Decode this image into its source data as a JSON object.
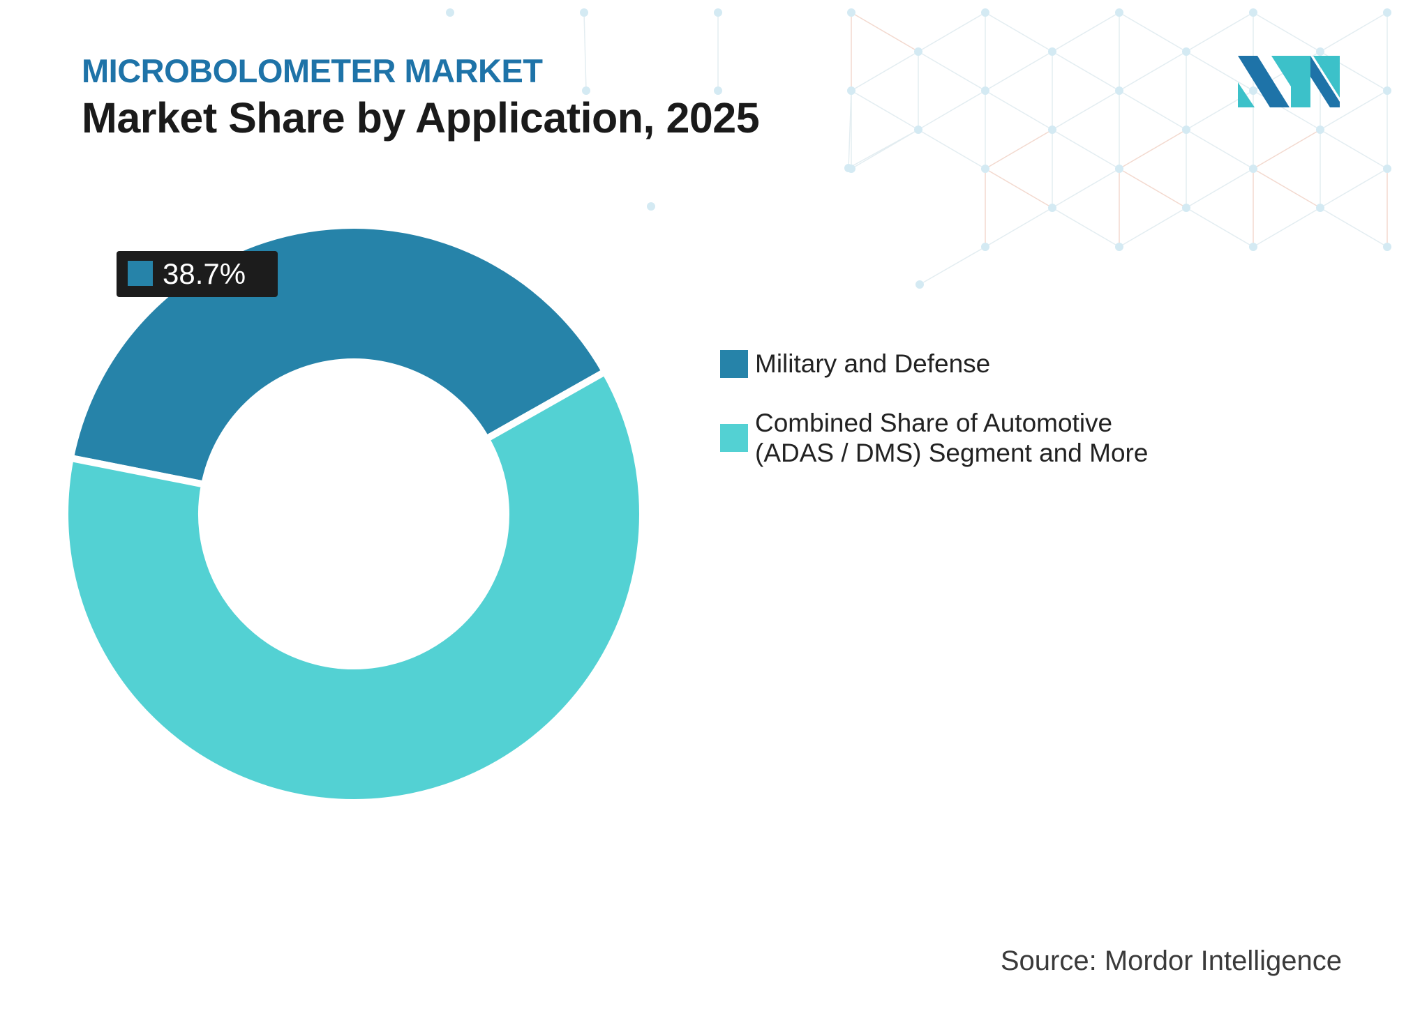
{
  "header": {
    "kicker": "MICROBOLOMETER MARKET",
    "title": "Market Share by Application, 2025"
  },
  "logo": {
    "icon": "mordor-intelligence-logo-icon",
    "colors": [
      "#1e73a8",
      "#3cc1c9"
    ]
  },
  "chart_data": {
    "type": "pie",
    "variant": "donut",
    "categories": [
      "Military and Defense",
      "Combined Share of Automotive (ADAS / DMS) Segment and More"
    ],
    "values": [
      38.7,
      61.3
    ],
    "units": "%",
    "colors": [
      "#2683a9",
      "#53d1d3"
    ],
    "data_labels": [
      {
        "category": "Military and Defense",
        "text": "38.7%"
      }
    ],
    "legend_position": "right"
  },
  "legend": {
    "items": [
      {
        "label": "Military and Defense",
        "color": "#2683a9"
      },
      {
        "label": "Combined Share of Automotive (ADAS / DMS) Segment and More",
        "color": "#53d1d3"
      }
    ]
  },
  "footer": {
    "source": "Source: Mordor Intelligence"
  }
}
